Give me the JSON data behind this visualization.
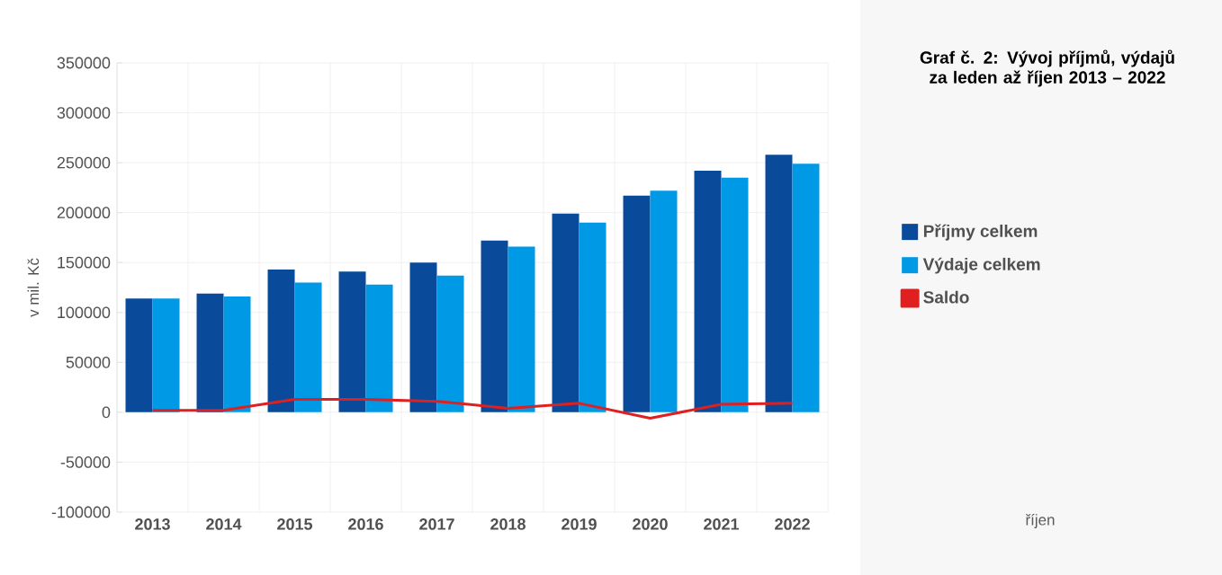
{
  "chart_data": {
    "type": "bar",
    "title": "Graf č. 2: Vývoj příjmů, výdajů za leden až říjen 2013 – 2022",
    "ylabel": "v mil. Kč",
    "annotations": [
      "říjen"
    ],
    "categories": [
      "2013",
      "2014",
      "2015",
      "2016",
      "2017",
      "2018",
      "2019",
      "2020",
      "2021",
      "2022"
    ],
    "series": [
      {
        "name": "Příjmy celkem",
        "color": "#0a4a9a",
        "values": [
          114000,
          119000,
          143000,
          141000,
          150000,
          172000,
          199000,
          217000,
          242000,
          258000
        ]
      },
      {
        "name": "Výdaje celkem",
        "color": "#0099e6",
        "values": [
          114000,
          116000,
          130000,
          128000,
          137000,
          166000,
          190000,
          222000,
          235000,
          249000
        ]
      },
      {
        "name": "Saldo",
        "color": "#e02020",
        "type": "line",
        "values": [
          2000,
          2000,
          13000,
          13000,
          11000,
          4000,
          9000,
          -6000,
          8000,
          9000
        ]
      }
    ],
    "ylim": [
      -100000,
      350000
    ],
    "yticks": [
      -100000,
      -50000,
      0,
      50000,
      100000,
      150000,
      200000,
      250000,
      300000,
      350000
    ],
    "grid": true,
    "legend": "right"
  }
}
